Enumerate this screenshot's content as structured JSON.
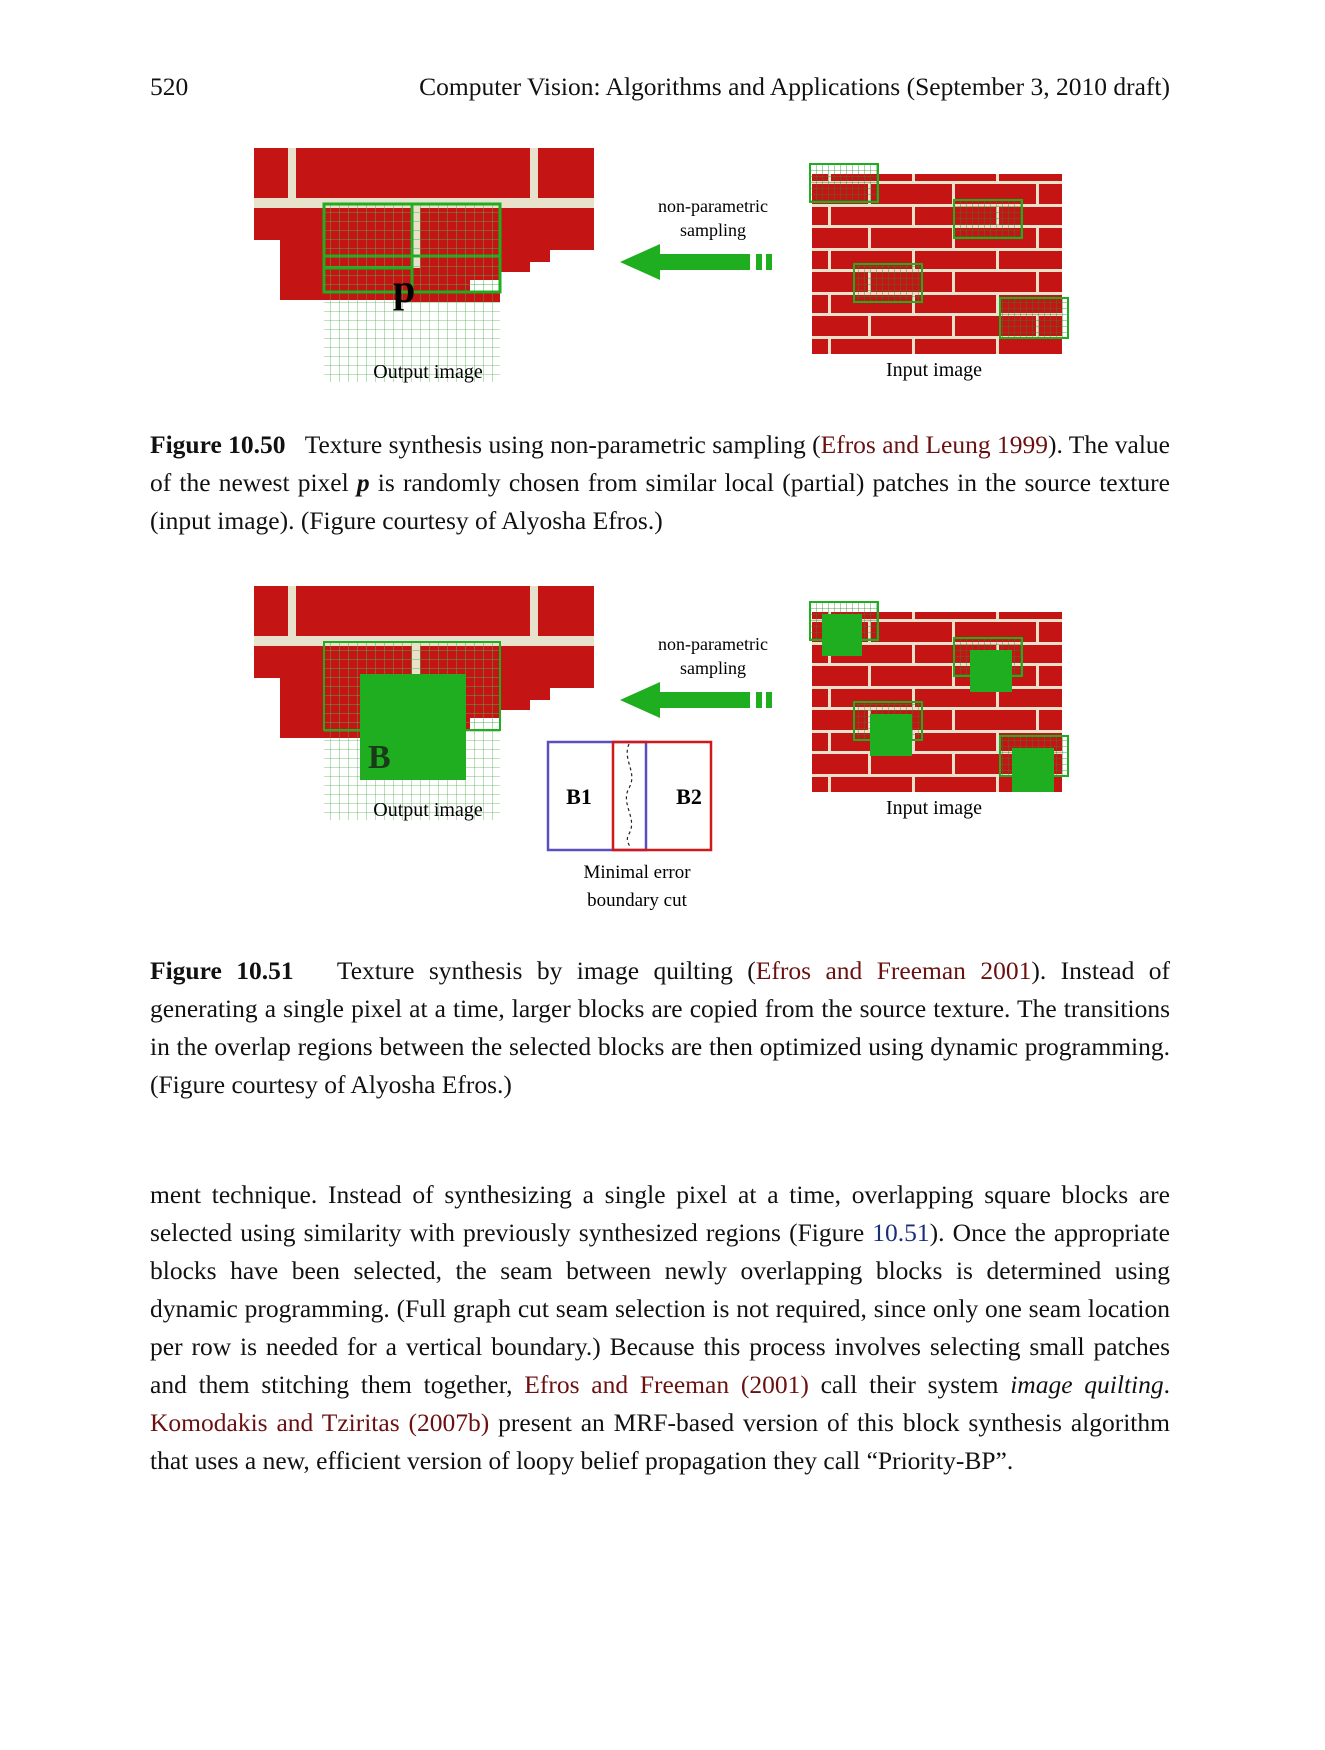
{
  "header": {
    "page_number": "520",
    "running_title": "Computer Vision: Algorithms and Applications (September 3, 2010 draft)"
  },
  "figure1": {
    "arrow_label_line1": "non-parametric",
    "arrow_label_line2": "sampling",
    "pixel_label": "p",
    "output_label": "Output image",
    "input_label": "Input image",
    "caption": {
      "number": "Figure 10.50",
      "text_before": "Texture synthesis using non-parametric sampling (",
      "cite": "Efros and Leung 1999",
      "text_mid1": "). The value of the newest pixel ",
      "var": "p",
      "text_after": " is randomly chosen from similar local (partial) patches in the source texture (input image). (Figure courtesy of Alyosha Efros.)"
    }
  },
  "figure2": {
    "arrow_label_line1": "non-parametric",
    "arrow_label_line2": "sampling",
    "block_label": "B",
    "output_label": "Output image",
    "input_label": "Input image",
    "b1_label": "B1",
    "b2_label": "B2",
    "cut_label_line1": "Minimal error",
    "cut_label_line2": "boundary cut",
    "caption": {
      "number": "Figure 10.51",
      "text_before": "Texture synthesis by image quilting (",
      "cite": "Efros and Freeman 2001",
      "text_after": "). Instead of generating a single pixel at a time, larger blocks are copied from the source texture. The transitions in the overlap regions between the selected blocks are then optimized using dynamic programming. (Figure courtesy of Alyosha Efros.)"
    }
  },
  "body": {
    "t1": "ment technique. Instead of synthesizing a single pixel at a time, overlapping square blocks are selected using similarity with previously synthesized regions (Figure ",
    "ref1": "10.51",
    "t2": "). Once the appropriate blocks have been selected, the seam between newly overlapping blocks is determined using dynamic programming. (Full graph cut seam selection is not required, since only one seam location per row is needed for a vertical boundary.) Because this process involves selecting small patches and them stitching them together, ",
    "cite1": "Efros and Freeman (2001)",
    "t3": " call their system ",
    "em": "image quilting",
    "t4": ". ",
    "cite2": "Komodakis and Tziritas (2007b)",
    "t5": " present an MRF-based version of this block synthesis algorithm that uses a new, efficient version of loopy belief propagation they call “Priority-BP”."
  },
  "colors": {
    "brick_red": "#c41414",
    "mortar": "#e8e2cc",
    "patch_green": "#1fae1f",
    "grid_green": "#2a9a2a",
    "cite_color": "#6b1010",
    "ref_color": "#1a2f7a",
    "b1_border": "#5a4fbf",
    "b2_border": "#d01a1a"
  }
}
